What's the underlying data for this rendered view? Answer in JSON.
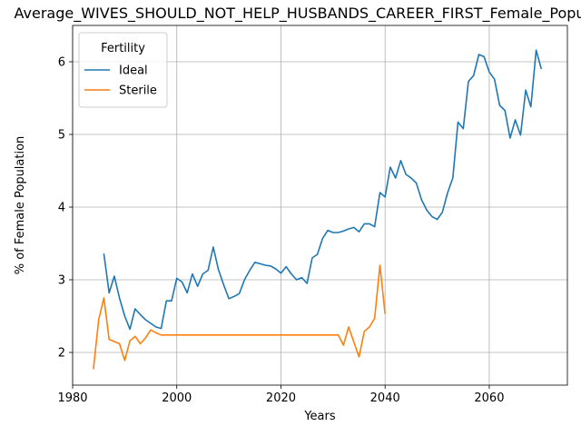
{
  "chart_data": {
    "type": "line",
    "title": "Average_WIVES_SHOULD_NOT_HELP_HUSBANDS_CAREER_FIRST_Female_Population",
    "xlabel": "Years",
    "ylabel": "% of Female Population",
    "xlim": [
      1980,
      2075
    ],
    "ylim": [
      1.55,
      6.5
    ],
    "xticks": [
      1980,
      2000,
      2020,
      2040,
      2060
    ],
    "yticks": [
      2,
      3,
      4,
      5,
      6
    ],
    "grid": true,
    "legend": {
      "title": "Fertility",
      "placement": "top-left"
    },
    "series": [
      {
        "name": "Ideal",
        "color": "#1f77b4",
        "x": [
          1986,
          1987,
          1988,
          1989,
          1990,
          1991,
          1992,
          1993,
          1994,
          1995,
          1996,
          1997,
          1998,
          1999,
          2000,
          2001,
          2002,
          2003,
          2004,
          2005,
          2006,
          2007,
          2008,
          2009,
          2010,
          2011,
          2012,
          2013,
          2014,
          2015,
          2016,
          2017,
          2018,
          2019,
          2020,
          2021,
          2022,
          2023,
          2024,
          2025,
          2026,
          2027,
          2028,
          2029,
          2030,
          2031,
          2032,
          2033,
          2034,
          2035,
          2036,
          2037,
          2038,
          2039,
          2040,
          2041,
          2042,
          2043,
          2044,
          2045,
          2046,
          2047,
          2048,
          2049,
          2050,
          2051,
          2052,
          2053,
          2054,
          2055,
          2056,
          2057,
          2058,
          2059,
          2060,
          2061,
          2062,
          2063,
          2064,
          2065,
          2066,
          2067,
          2068,
          2069,
          2070
        ],
        "values": [
          3.36,
          2.82,
          3.05,
          2.75,
          2.5,
          2.32,
          2.6,
          2.52,
          2.45,
          2.4,
          2.35,
          2.33,
          2.71,
          2.71,
          3.02,
          2.97,
          2.82,
          3.08,
          2.91,
          3.08,
          3.13,
          3.45,
          3.14,
          2.93,
          2.74,
          2.77,
          2.81,
          3.0,
          3.13,
          3.24,
          3.22,
          3.2,
          3.19,
          3.15,
          3.09,
          3.18,
          3.08,
          3.0,
          3.03,
          2.95,
          3.3,
          3.35,
          3.57,
          3.68,
          3.65,
          3.65,
          3.67,
          3.7,
          3.72,
          3.66,
          3.77,
          3.77,
          3.73,
          4.2,
          4.14,
          4.55,
          4.4,
          4.64,
          4.45,
          4.4,
          4.33,
          4.1,
          3.96,
          3.87,
          3.83,
          3.93,
          4.2,
          4.4,
          5.17,
          5.08,
          5.73,
          5.81,
          6.1,
          6.07,
          5.86,
          5.76,
          5.4,
          5.33,
          4.95,
          5.2,
          4.99,
          5.61,
          5.38,
          6.16,
          5.9
        ]
      },
      {
        "name": "Sterile",
        "color": "#ff7f0e",
        "x": [
          1984,
          1985,
          1986,
          1987,
          1988,
          1989,
          1990,
          1991,
          1992,
          1993,
          1994,
          1995,
          1996,
          1997,
          1998,
          1999,
          2000,
          2001,
          2002,
          2003,
          2004,
          2005,
          2006,
          2007,
          2008,
          2009,
          2010,
          2011,
          2012,
          2013,
          2014,
          2015,
          2016,
          2017,
          2018,
          2019,
          2020,
          2021,
          2022,
          2023,
          2024,
          2025,
          2026,
          2027,
          2028,
          2029,
          2030,
          2031,
          2032,
          2033,
          2034,
          2035,
          2036,
          2037,
          2038,
          2039,
          2040
        ],
        "values": [
          1.77,
          2.45,
          2.75,
          2.18,
          2.15,
          2.12,
          1.89,
          2.16,
          2.22,
          2.12,
          2.2,
          2.31,
          2.27,
          2.24,
          2.24,
          2.24,
          2.24,
          2.24,
          2.24,
          2.24,
          2.24,
          2.24,
          2.24,
          2.24,
          2.24,
          2.24,
          2.24,
          2.24,
          2.24,
          2.24,
          2.24,
          2.24,
          2.24,
          2.24,
          2.24,
          2.24,
          2.24,
          2.24,
          2.24,
          2.24,
          2.24,
          2.24,
          2.24,
          2.24,
          2.24,
          2.24,
          2.24,
          2.24,
          2.1,
          2.35,
          2.14,
          1.94,
          2.29,
          2.35,
          2.47,
          3.2,
          2.53
        ]
      }
    ]
  }
}
